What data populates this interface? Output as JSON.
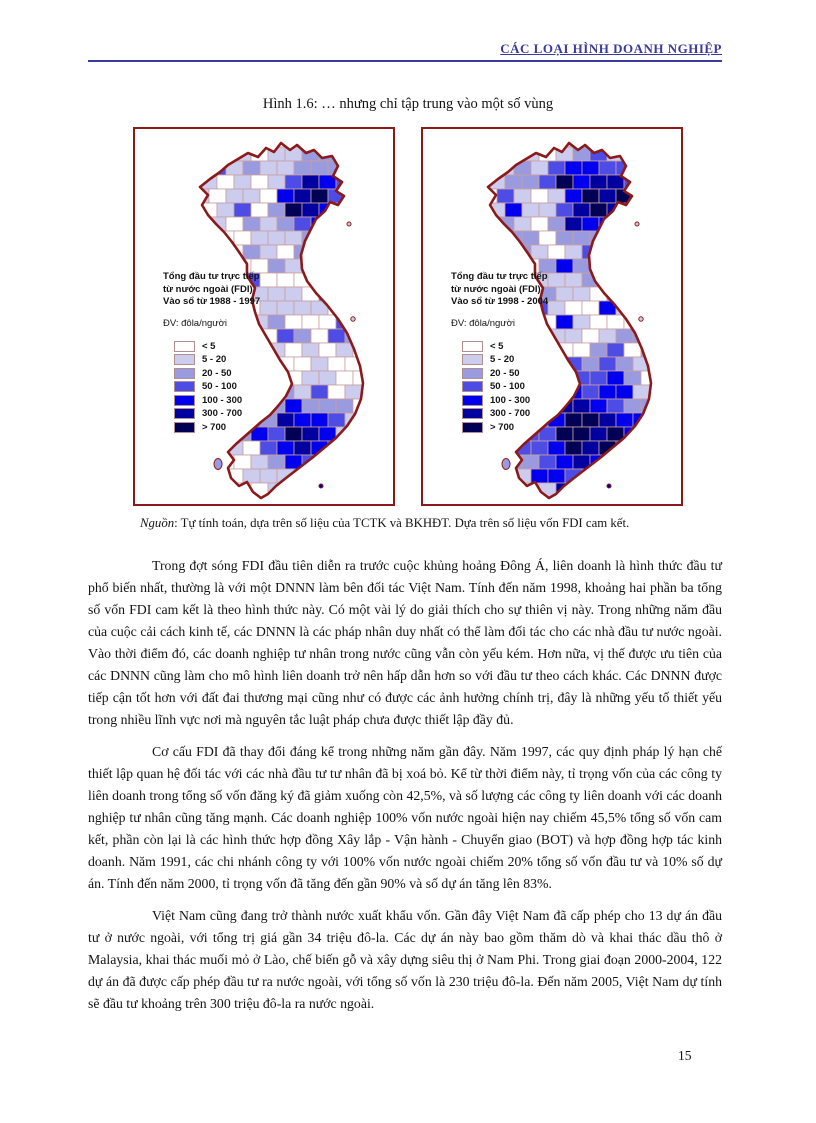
{
  "header": {
    "title": "CÁC LOẠI HÌNH DOANH NGHIỆP"
  },
  "figure": {
    "caption": "Hình 1.6: … nhưng chỉ tập trung vào một số vùng",
    "source_label": "Nguồn",
    "source_text": ":  Tự tính toán, dựa trên số liệu của TCTK và BKHĐT. Dựa trên số liệu vốn FDI cam kết.",
    "palette": [
      "#ffffff",
      "#ccccee",
      "#9a9ade",
      "#4d4de6",
      "#0000ee",
      "#0000a0",
      "#000055"
    ],
    "outline_color": "#8b1a1a",
    "province_border_color": "#c9a0a0",
    "maps": [
      {
        "title_line1": "Tổng đầu tư trực tiếp",
        "title_line2": "từ nước ngoài (FDI)",
        "title_line3": "Vào sổ từ 1988 - 1997",
        "unit": "ĐV: đôla/người",
        "classes": [
          "< 5",
          "5 - 20",
          "20 - 50",
          "50 - 100",
          "100 - 300",
          "300 - 700",
          "> 700"
        ]
      },
      {
        "title_line1": "Tổng đầu tư trực tiếp",
        "title_line2": "từ nước ngoài (FDI)",
        "title_line3": "Vào sổ từ 1998 - 2004",
        "unit": "ĐV: đôla/người",
        "classes": [
          "< 5",
          "5 - 20",
          "20 - 50",
          "50 - 100",
          "100 - 300",
          "300 - 700",
          "> 700"
        ]
      }
    ]
  },
  "paragraphs": [
    "Trong đợt sóng FDI đầu tiên diễn ra trước cuộc khủng hoảng Đông Á, liên doanh là hình thức đầu tư phổ biến nhất, thường là với một DNNN làm bên đối tác Việt Nam. Tính đến năm 1998, khoảng hai phần ba tổng số vốn FDI cam kết là theo hình thức này. Có một vài lý do giải thích cho sự thiên vị này. Trong những năm đầu của cuộc cải cách kinh tế, các DNNN là các pháp nhân duy nhất có thể làm đối tác cho các nhà đầu tư nước ngoài. Vào thời điểm đó, các doanh nghiệp tư nhân trong nước cũng vẫn còn yếu kém. Hơn nữa, vị thế được ưu tiên của các DNNN cũng làm cho mô hình liên doanh trở nên hấp dẫn hơn so với đầu tư theo cách khác. Các DNNN được tiếp cận tốt hơn với đất đai thương mại cũng như có được các ảnh hưởng chính trị, đây là những yếu tố thiết yếu trong nhiều lĩnh vực nơi mà nguyên tắc luật pháp chưa được thiết lập đầy đủ.",
    "Cơ cấu FDI đã thay đổi đáng kể trong những năm gần đây. Năm 1997, các quy định pháp lý hạn chế thiết lập quan hệ đối tác với các nhà đầu tư tư nhân đã bị xoá bỏ. Kể từ thời điểm này, tỉ trọng vốn của các công ty liên doanh trong tổng số vốn đăng ký đã giảm xuống còn 42,5%, và số lượng các công ty liên doanh với các doanh nghiệp tư nhân cũng tăng mạnh. Các doanh nghiệp 100% vốn nước ngoài hiện nay chiếm 45,5% tổng số vốn cam kết, phần còn lại là các hình thức hợp đồng Xây lắp - Vận hành - Chuyển giao (BOT) và hợp đồng hợp tác kinh doanh. Năm 1991, các chi nhánh công ty với 100% vốn nước ngoài chiếm 20% tổng số vốn đầu tư và 10% số dự án. Tính đến năm 2000, tỉ trọng vốn đã tăng đến gần 90% và số dự án tăng lên 83%.",
    "Việt Nam cũng đang trở thành nước xuất khẩu vốn. Gần đây Việt Nam đã cấp phép cho 13 dự án đầu tư ở nước ngoài, với tổng trị giá gần 34 triệu đô-la. Các dự án này bao gồm thăm dò và khai thác dầu thô ở Malaysia, khai thác muối mỏ ở Lào, chế biến gỗ và xây dựng siêu thị ở Nam Phi. Trong giai đoạn 2000-2004, 122 dự án đã được cấp phép đầu tư ra nước ngoài, với tổng số vốn là 230 triệu đô-la. Đến năm 2005, Việt Nam dự tính sẽ đầu tư khoảng trên 300 triệu đô-la ra nước ngoài."
  ],
  "page": {
    "number": "15"
  }
}
